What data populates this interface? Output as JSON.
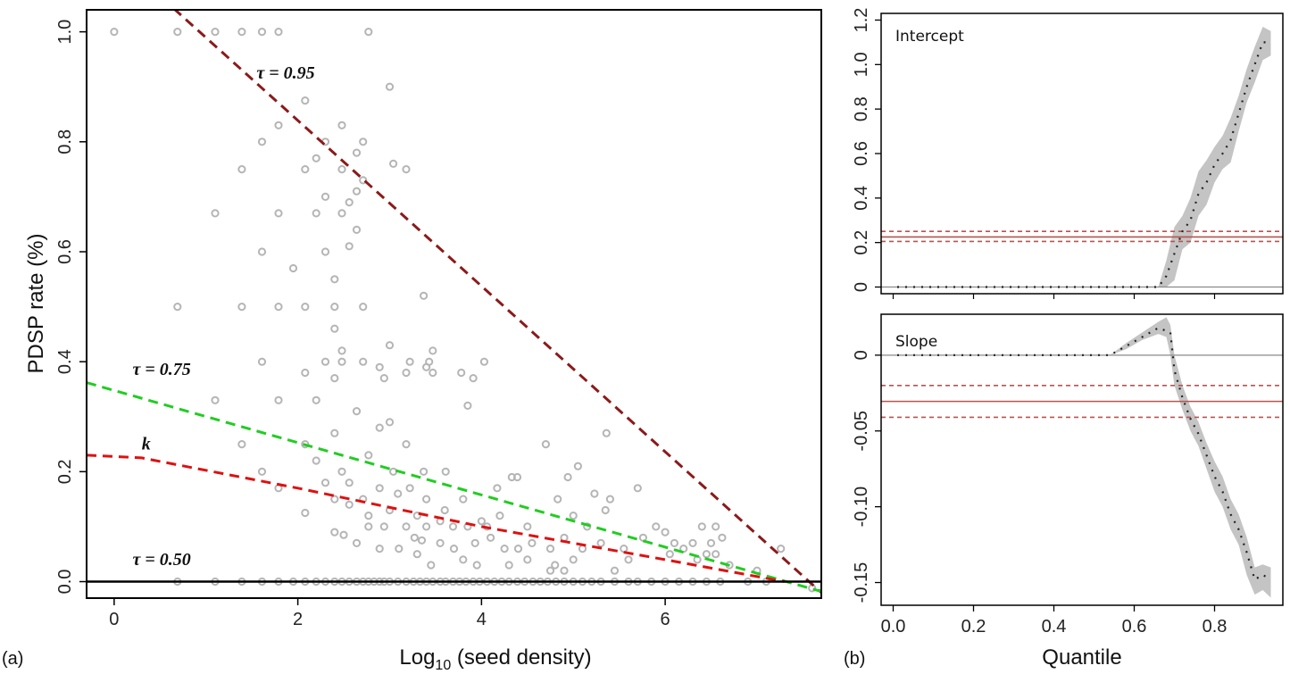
{
  "chart_data": [
    {
      "panel": "(a)",
      "type": "scatter",
      "xlabel_main": "Log",
      "xlabel_sub": "10",
      "xlabel_rest": " (seed density)",
      "ylabel": "PDSP rate (%)",
      "xlim": [
        -0.3,
        7.7
      ],
      "ylim": [
        -0.03,
        1.04
      ],
      "xticks": [
        0,
        2,
        4,
        6
      ],
      "yticks": [
        0.0,
        0.2,
        0.4,
        0.6,
        0.8,
        1.0
      ],
      "ytick_labels": [
        "0.0",
        "0.2",
        "0.4",
        "0.6",
        "0.8",
        "1.0"
      ],
      "points": [
        [
          0,
          1.0
        ],
        [
          0.69,
          1.0
        ],
        [
          1.1,
          1.0
        ],
        [
          1.39,
          1.0
        ],
        [
          1.61,
          1.0
        ],
        [
          1.79,
          1.0
        ],
        [
          2.77,
          1.0
        ],
        [
          3.0,
          0.9
        ],
        [
          1.79,
          0.83
        ],
        [
          2.48,
          0.83
        ],
        [
          2.08,
          0.875
        ],
        [
          1.61,
          0.8
        ],
        [
          2.3,
          0.8
        ],
        [
          2.64,
          0.78
        ],
        [
          2.71,
          0.8
        ],
        [
          2.2,
          0.77
        ],
        [
          1.39,
          0.75
        ],
        [
          2.08,
          0.75
        ],
        [
          2.48,
          0.75
        ],
        [
          3.04,
          0.76
        ],
        [
          3.18,
          0.75
        ],
        [
          2.71,
          0.73
        ],
        [
          2.64,
          0.71
        ],
        [
          2.3,
          0.7
        ],
        [
          2.56,
          0.69
        ],
        [
          1.1,
          0.67
        ],
        [
          1.79,
          0.67
        ],
        [
          2.2,
          0.67
        ],
        [
          2.48,
          0.67
        ],
        [
          2.64,
          0.64
        ],
        [
          2.56,
          0.61
        ],
        [
          1.61,
          0.6
        ],
        [
          2.3,
          0.6
        ],
        [
          1.95,
          0.57
        ],
        [
          2.4,
          0.55
        ],
        [
          3.37,
          0.52
        ],
        [
          0.69,
          0.5
        ],
        [
          1.39,
          0.5
        ],
        [
          1.79,
          0.5
        ],
        [
          2.08,
          0.5
        ],
        [
          2.4,
          0.5
        ],
        [
          2.71,
          0.5
        ],
        [
          2.4,
          0.46
        ],
        [
          3.0,
          0.43
        ],
        [
          2.48,
          0.42
        ],
        [
          3.47,
          0.42
        ],
        [
          1.61,
          0.4
        ],
        [
          2.3,
          0.4
        ],
        [
          2.48,
          0.4
        ],
        [
          2.71,
          0.4
        ],
        [
          3.22,
          0.4
        ],
        [
          3.43,
          0.4
        ],
        [
          4.03,
          0.4
        ],
        [
          2.08,
          0.38
        ],
        [
          2.4,
          0.37
        ],
        [
          2.89,
          0.39
        ],
        [
          2.94,
          0.37
        ],
        [
          3.18,
          0.38
        ],
        [
          3.47,
          0.38
        ],
        [
          3.78,
          0.38
        ],
        [
          3.91,
          0.37
        ],
        [
          3.4,
          0.39
        ],
        [
          1.1,
          0.33
        ],
        [
          1.79,
          0.33
        ],
        [
          2.2,
          0.33
        ],
        [
          3.85,
          0.32
        ],
        [
          2.64,
          0.31
        ],
        [
          2.89,
          0.28
        ],
        [
          3.0,
          0.29
        ],
        [
          2.4,
          0.27
        ],
        [
          1.39,
          0.25
        ],
        [
          2.08,
          0.25
        ],
        [
          3.18,
          0.25
        ],
        [
          4.7,
          0.25
        ],
        [
          2.2,
          0.22
        ],
        [
          2.77,
          0.23
        ],
        [
          5.36,
          0.27
        ],
        [
          5.05,
          0.21
        ],
        [
          4.94,
          0.19
        ],
        [
          4.33,
          0.19
        ],
        [
          4.39,
          0.19
        ],
        [
          1.61,
          0.2
        ],
        [
          2.48,
          0.2
        ],
        [
          3.04,
          0.2
        ],
        [
          3.37,
          0.2
        ],
        [
          3.61,
          0.2
        ],
        [
          2.3,
          0.18
        ],
        [
          2.56,
          0.18
        ],
        [
          2.89,
          0.17
        ],
        [
          3.22,
          0.17
        ],
        [
          1.79,
          0.17
        ],
        [
          4.17,
          0.17
        ],
        [
          5.23,
          0.16
        ],
        [
          5.7,
          0.17
        ],
        [
          2.71,
          0.15
        ],
        [
          2.4,
          0.15
        ],
        [
          3.09,
          0.16
        ],
        [
          3.4,
          0.15
        ],
        [
          3.8,
          0.15
        ],
        [
          4.83,
          0.15
        ],
        [
          5.4,
          0.15
        ],
        [
          2.08,
          0.125
        ],
        [
          2.56,
          0.14
        ],
        [
          2.77,
          0.12
        ],
        [
          3.0,
          0.13
        ],
        [
          3.3,
          0.12
        ],
        [
          3.55,
          0.11
        ],
        [
          3.6,
          0.13
        ],
        [
          4.0,
          0.11
        ],
        [
          4.2,
          0.12
        ],
        [
          5.0,
          0.12
        ],
        [
          5.35,
          0.13
        ],
        [
          2.77,
          0.1
        ],
        [
          2.94,
          0.1
        ],
        [
          3.18,
          0.1
        ],
        [
          3.4,
          0.1
        ],
        [
          3.69,
          0.1
        ],
        [
          3.85,
          0.1
        ],
        [
          4.06,
          0.1
        ],
        [
          4.5,
          0.1
        ],
        [
          5.15,
          0.1
        ],
        [
          5.9,
          0.1
        ],
        [
          6.0,
          0.09
        ],
        [
          6.4,
          0.1
        ],
        [
          6.55,
          0.1
        ],
        [
          2.4,
          0.09
        ],
        [
          2.5,
          0.085
        ],
        [
          2.64,
          0.07
        ],
        [
          2.89,
          0.06
        ],
        [
          3.1,
          0.06
        ],
        [
          3.27,
          0.08
        ],
        [
          3.35,
          0.075
        ],
        [
          3.55,
          0.07
        ],
        [
          3.7,
          0.06
        ],
        [
          3.93,
          0.07
        ],
        [
          4.1,
          0.08
        ],
        [
          4.25,
          0.06
        ],
        [
          4.4,
          0.06
        ],
        [
          4.55,
          0.07
        ],
        [
          4.75,
          0.06
        ],
        [
          4.9,
          0.08
        ],
        [
          5.1,
          0.06
        ],
        [
          5.3,
          0.07
        ],
        [
          5.55,
          0.06
        ],
        [
          5.76,
          0.08
        ],
        [
          6.1,
          0.07
        ],
        [
          6.2,
          0.06
        ],
        [
          6.3,
          0.07
        ],
        [
          6.5,
          0.07
        ],
        [
          6.62,
          0.08
        ],
        [
          6.45,
          0.05
        ],
        [
          7.26,
          0.06
        ],
        [
          3.3,
          0.05
        ],
        [
          3.45,
          0.03
        ],
        [
          3.8,
          0.04
        ],
        [
          4.3,
          0.03
        ],
        [
          4.5,
          0.04
        ],
        [
          4.8,
          0.03
        ],
        [
          5.0,
          0.04
        ],
        [
          5.45,
          0.02
        ],
        [
          5.6,
          0.04
        ],
        [
          6.05,
          0.05
        ],
        [
          6.35,
          0.04
        ],
        [
          6.55,
          0.05
        ],
        [
          6.7,
          0.03
        ],
        [
          7.0,
          0.02
        ],
        [
          4.75,
          0.02
        ],
        [
          4.9,
          0.02
        ],
        [
          3.95,
          0.03
        ],
        [
          0.69,
          0
        ],
        [
          1.1,
          0
        ],
        [
          1.39,
          0
        ],
        [
          1.61,
          0
        ],
        [
          1.79,
          0
        ],
        [
          1.95,
          0
        ],
        [
          2.08,
          0
        ],
        [
          2.2,
          0
        ],
        [
          2.3,
          0
        ],
        [
          2.4,
          0
        ],
        [
          2.48,
          0
        ],
        [
          2.56,
          0
        ],
        [
          2.64,
          0
        ],
        [
          2.71,
          0
        ],
        [
          2.77,
          0
        ],
        [
          2.83,
          0
        ],
        [
          2.89,
          0
        ],
        [
          2.94,
          0
        ],
        [
          3.0,
          0
        ],
        [
          3.09,
          0
        ],
        [
          3.18,
          0
        ],
        [
          3.26,
          0
        ],
        [
          3.33,
          0
        ],
        [
          3.4,
          0
        ],
        [
          3.47,
          0
        ],
        [
          3.55,
          0
        ],
        [
          3.61,
          0
        ],
        [
          3.69,
          0
        ],
        [
          3.76,
          0
        ],
        [
          3.83,
          0
        ],
        [
          3.91,
          0
        ],
        [
          3.98,
          0
        ],
        [
          4.06,
          0
        ],
        [
          4.14,
          0
        ],
        [
          4.22,
          0
        ],
        [
          4.3,
          0
        ],
        [
          4.39,
          0
        ],
        [
          4.47,
          0
        ],
        [
          4.56,
          0
        ],
        [
          4.64,
          0
        ],
        [
          4.72,
          0
        ],
        [
          4.81,
          0
        ],
        [
          4.9,
          0
        ],
        [
          5.0,
          0
        ],
        [
          5.1,
          0
        ],
        [
          5.2,
          0
        ],
        [
          5.3,
          0
        ],
        [
          5.45,
          0
        ],
        [
          5.6,
          0
        ],
        [
          5.7,
          0
        ],
        [
          5.85,
          0
        ],
        [
          6.0,
          0
        ],
        [
          6.15,
          0
        ],
        [
          6.3,
          0
        ],
        [
          6.45,
          0
        ],
        [
          6.6,
          0
        ],
        [
          6.9,
          0
        ],
        [
          7.1,
          0
        ],
        [
          7.6,
          -0.012
        ]
      ],
      "lines": [
        {
          "name": "τ = 0.95",
          "color": "#8b1a1a",
          "x": [
            0.0,
            7.7
          ],
          "y": [
            1.14,
            -0.02
          ],
          "dash": true
        },
        {
          "name": "τ = 0.75",
          "color": "#22cc22",
          "x": [
            -0.3,
            7.7
          ],
          "y": [
            0.362,
            -0.018
          ],
          "dash": true
        },
        {
          "name": "k",
          "color": "#dd1111",
          "x": [
            -0.3,
            0.3,
            2.0,
            4.0,
            6.0,
            7.3
          ],
          "y": [
            0.23,
            0.225,
            0.17,
            0.1,
            0.04,
            0.0
          ],
          "dash": true
        },
        {
          "name": "τ = 0.50",
          "color": "#000000",
          "x": [
            -0.3,
            7.7
          ],
          "y": [
            0.0,
            0.0
          ],
          "dash": false
        }
      ],
      "annotations": [
        {
          "label": "τ = 0.95",
          "x": 1.55,
          "y": 0.915
        },
        {
          "label": "τ = 0.75",
          "x": 0.2,
          "y": 0.376
        },
        {
          "label": "k",
          "x": 0.3,
          "y": 0.24
        },
        {
          "label": "τ = 0.50",
          "x": 0.2,
          "y": 0.03
        }
      ]
    },
    {
      "panel": "(b) top",
      "type": "line",
      "title": "Intercept",
      "xlim": [
        -0.03,
        0.97
      ],
      "ylim": [
        -0.03,
        1.23
      ],
      "yticks": [
        0,
        0.2,
        0.4,
        0.6,
        0.8,
        1.0,
        1.2
      ],
      "ytick_labels": [
        "0",
        "0.2",
        "0.4",
        "0.6",
        "0.8",
        "1.0",
        "1.2"
      ],
      "reference_lines": {
        "solid": 0.225,
        "dashed": [
          0.205,
          0.25
        ],
        "zero": 0
      },
      "band_x": [
        0.66,
        0.68,
        0.7,
        0.72,
        0.74,
        0.76,
        0.78,
        0.8,
        0.82,
        0.84,
        0.86,
        0.88,
        0.9,
        0.92,
        0.94
      ],
      "band_low": [
        0.0,
        0.0,
        0.03,
        0.17,
        0.2,
        0.32,
        0.37,
        0.47,
        0.53,
        0.56,
        0.7,
        0.83,
        0.92,
        1.02,
        1.04
      ],
      "band_high": [
        0.0,
        0.12,
        0.27,
        0.32,
        0.4,
        0.52,
        0.57,
        0.63,
        0.68,
        0.76,
        0.86,
        0.98,
        1.08,
        1.17,
        1.15
      ],
      "estimate_x": [
        0.01,
        0.05,
        0.1,
        0.15,
        0.2,
        0.25,
        0.3,
        0.35,
        0.4,
        0.45,
        0.5,
        0.55,
        0.6,
        0.65,
        0.66,
        0.68,
        0.7,
        0.72,
        0.74,
        0.76,
        0.78,
        0.8,
        0.82,
        0.84,
        0.86,
        0.88,
        0.9,
        0.92,
        0.94
      ],
      "estimate_y": [
        0,
        0,
        0,
        0,
        0,
        0,
        0,
        0,
        0,
        0,
        0,
        0,
        0,
        0,
        0.0,
        0.05,
        0.15,
        0.25,
        0.3,
        0.42,
        0.47,
        0.55,
        0.6,
        0.66,
        0.78,
        0.9,
        1.0,
        1.1,
        1.1
      ]
    },
    {
      "panel": "(b) bottom",
      "type": "line",
      "title": "Slope",
      "xlabel": "Quantile",
      "xlim": [
        -0.03,
        0.97
      ],
      "ylim": [
        -0.165,
        0.027
      ],
      "xticks": [
        0.0,
        0.2,
        0.4,
        0.6,
        0.8
      ],
      "xtick_labels": [
        "0.0",
        "0.2",
        "0.4",
        "0.6",
        "0.8"
      ],
      "yticks": [
        0,
        -0.05,
        -0.1,
        -0.15
      ],
      "ytick_labels": [
        "0",
        "-0.05",
        "-0.10",
        "-0.15"
      ],
      "reference_lines": {
        "solid": -0.0305,
        "dashed": [
          -0.02,
          -0.041
        ],
        "zero": 0
      },
      "band_x": [
        0.54,
        0.58,
        0.62,
        0.66,
        0.68,
        0.69,
        0.7,
        0.72,
        0.74,
        0.76,
        0.78,
        0.8,
        0.82,
        0.84,
        0.86,
        0.88,
        0.9,
        0.92,
        0.94
      ],
      "band_low": [
        0.0,
        0.004,
        0.01,
        0.014,
        0.012,
        0.0,
        -0.02,
        -0.036,
        -0.05,
        -0.06,
        -0.075,
        -0.09,
        -0.1,
        -0.115,
        -0.125,
        -0.145,
        -0.158,
        -0.155,
        -0.16
      ],
      "band_high": [
        0.0,
        0.008,
        0.015,
        0.022,
        0.025,
        0.02,
        0.0,
        -0.02,
        -0.034,
        -0.044,
        -0.058,
        -0.07,
        -0.08,
        -0.095,
        -0.105,
        -0.12,
        -0.14,
        -0.138,
        -0.14
      ],
      "estimate_x": [
        0.01,
        0.05,
        0.1,
        0.15,
        0.2,
        0.25,
        0.3,
        0.35,
        0.4,
        0.45,
        0.5,
        0.54,
        0.58,
        0.62,
        0.66,
        0.69,
        0.7,
        0.72,
        0.74,
        0.76,
        0.78,
        0.8,
        0.82,
        0.84,
        0.86,
        0.88,
        0.9,
        0.92,
        0.94
      ],
      "estimate_y": [
        0,
        0,
        0,
        0,
        0,
        0,
        0,
        0,
        0,
        0,
        0,
        0.0,
        0.006,
        0.012,
        0.018,
        0.015,
        -0.01,
        -0.028,
        -0.042,
        -0.052,
        -0.066,
        -0.08,
        -0.09,
        -0.105,
        -0.115,
        -0.13,
        -0.148,
        -0.145,
        -0.148
      ]
    }
  ],
  "panel_labels": {
    "a": "(a)",
    "b": "(b)"
  },
  "colors": {
    "points": "#b5b5b5",
    "band": "#c4c4c4",
    "ref": "#b5554f",
    "frame": "#000000"
  }
}
